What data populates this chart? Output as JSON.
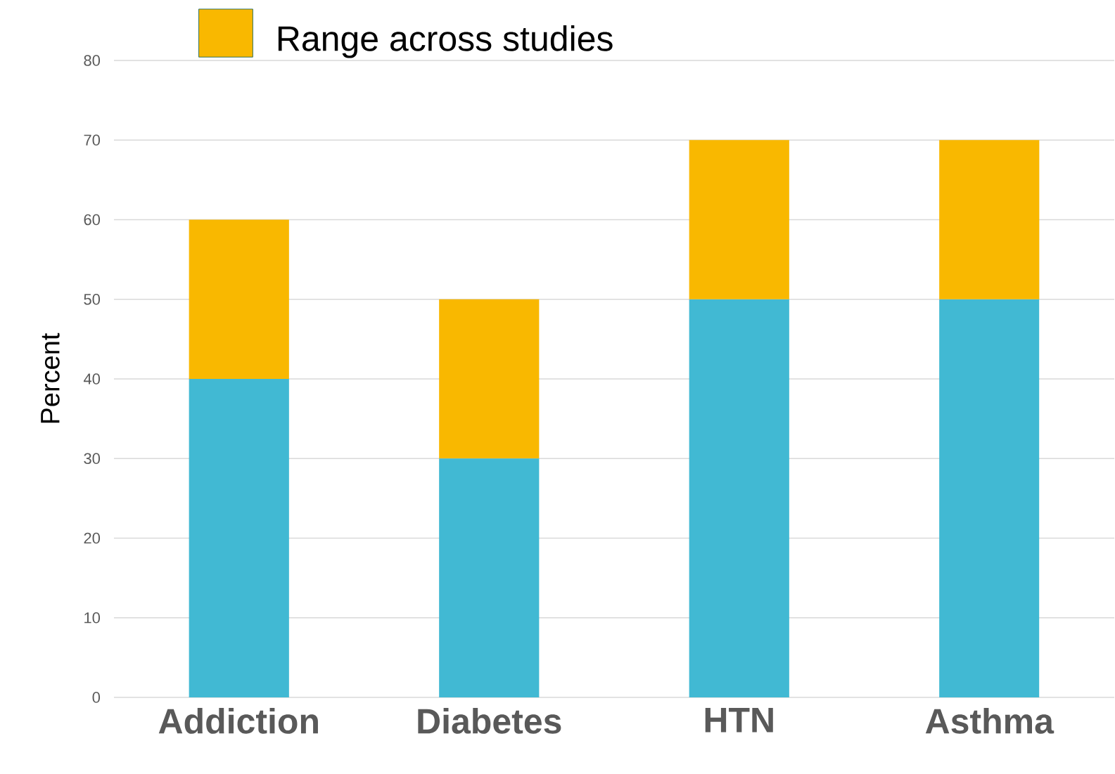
{
  "chart_data": {
    "type": "bar",
    "stacked": true,
    "ylabel": "Percent",
    "categories": [
      "Addiction",
      "Diabetes",
      "HTN",
      "Asthma"
    ],
    "series": [
      {
        "color": "#41b9d3",
        "values": [
          40,
          30,
          50,
          50
        ]
      },
      {
        "name": "Range across studies",
        "color": "#f9b800",
        "values": [
          20,
          20,
          20,
          20
        ]
      }
    ],
    "ylim": [
      0,
      80
    ],
    "yticks": [
      0,
      10,
      20,
      30,
      40,
      50,
      60,
      70,
      80
    ],
    "grid": "y",
    "legend": "top"
  }
}
